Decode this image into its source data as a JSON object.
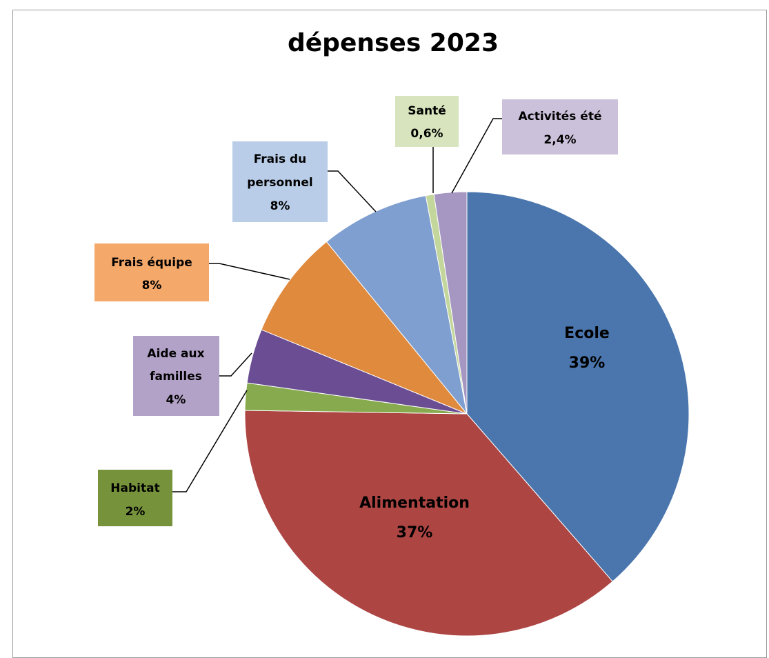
{
  "chart_data": {
    "type": "pie",
    "title": "dépenses  2023",
    "slices": [
      {
        "label": "Ecole",
        "value": 39,
        "display": "39%",
        "color": "#4a76ad",
        "label_bg": ""
      },
      {
        "label": "Alimentation",
        "value": 37,
        "display": "37%",
        "color": "#ad4543",
        "label_bg": ""
      },
      {
        "label": "Habitat",
        "value": 2,
        "display": "2%",
        "color": "#86aa4d",
        "label_bg": "#76933c"
      },
      {
        "label": "Aide aux familles",
        "value": 4,
        "display": "4%",
        "color": "#6a4d93",
        "label_bg": "#b3a2c7"
      },
      {
        "label": "Frais équipe",
        "value": 8,
        "display": "8%",
        "color": "#e08a3e",
        "label_bg": "#f4a86a"
      },
      {
        "label": "Frais du personnel",
        "value": 8,
        "display": "8%",
        "color": "#7f9fd0",
        "label_bg": "#b9cde8"
      },
      {
        "label": "Santé",
        "value": 0.6,
        "display": "0,6%",
        "color": "#c3d69b",
        "label_bg": "#d7e4bd"
      },
      {
        "label": "Activités été",
        "value": 2.4,
        "display": "2,4%",
        "color": "#a597c1",
        "label_bg": "#ccc1da"
      }
    ]
  },
  "labels": {
    "ecole": {
      "name": "Ecole",
      "pct": "39%"
    },
    "alimentation": {
      "name": "Alimentation",
      "pct": "37%"
    },
    "habitat": {
      "name": "Habitat",
      "pct": "2%"
    },
    "aide": {
      "line1": "Aide aux",
      "line2": "familles",
      "pct": "4%"
    },
    "equipe": {
      "name": "Frais équipe",
      "pct": "8%"
    },
    "personnel": {
      "line1": "Frais du",
      "line2": "personnel",
      "pct": "8%"
    },
    "sante": {
      "name": "Santé",
      "pct": "0,6%"
    },
    "activites": {
      "name": "Activités été",
      "pct": "2,4%"
    }
  }
}
